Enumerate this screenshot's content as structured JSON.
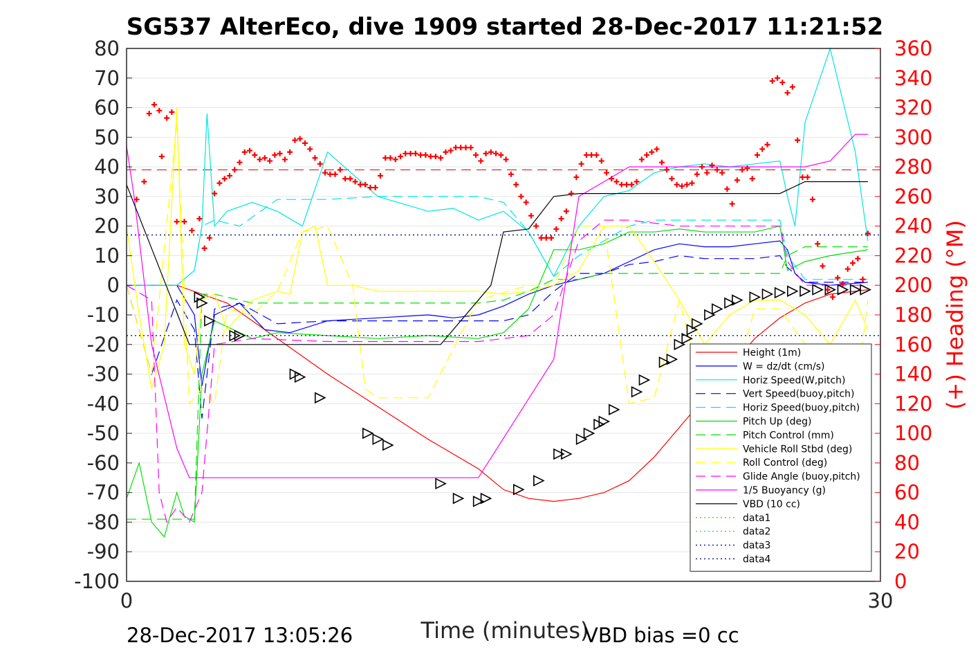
{
  "chart_data": {
    "type": "line",
    "title": "SG537 AlterEco, dive 1909 started 28-Dec-2017 11:21:52",
    "xlabel": "Time (minutes)",
    "ylabel": "",
    "ylabel_right": "(+) Heading (°M)",
    "xlim": [
      0,
      30
    ],
    "ylim": [
      -100,
      80
    ],
    "ylim_right": [
      0,
      360
    ],
    "x_ticks": [
      "0",
      "30"
    ],
    "y_ticks": [
      "80",
      "70",
      "60",
      "50",
      "40",
      "30",
      "20",
      "10",
      "0",
      "-10",
      "-20",
      "-30",
      "-40",
      "-50",
      "-60",
      "-70",
      "-80",
      "-90",
      "-100"
    ],
    "y_ticks_right": [
      "360",
      "340",
      "320",
      "300",
      "280",
      "260",
      "240",
      "220",
      "200",
      "180",
      "160",
      "140",
      "120",
      "100",
      "80",
      "60",
      "40",
      "20",
      "0"
    ],
    "grid": true,
    "legend_position": "lower-right",
    "footer_left": "28-Dec-2017 13:05:26",
    "footer_right": "VBD bias =0 cc",
    "series": [
      {
        "name": "Height (1m)",
        "color": "#ff0000",
        "style": "solid",
        "x": [
          0,
          2,
          4,
          6,
          8,
          10,
          12,
          14,
          15,
          16,
          17,
          18,
          19,
          20,
          21,
          22,
          23,
          24,
          25,
          26,
          27,
          28,
          29.5
        ],
        "y": [
          0,
          0,
          -6,
          -18,
          -30,
          -41,
          -52,
          -62,
          -69,
          -72,
          -73,
          -72,
          -70,
          -66,
          -58,
          -48,
          -38,
          -28,
          -18,
          -11,
          -6,
          -3,
          -1.5
        ]
      },
      {
        "name": "W = dz/dt (cm/s)",
        "color": "#0000ff",
        "style": "solid",
        "x": [
          0,
          2,
          2.7,
          3,
          3.5,
          4.5,
          5.5,
          6.5,
          8,
          10,
          12,
          13,
          14,
          15,
          16,
          17,
          18,
          19,
          20,
          21,
          22,
          23,
          24,
          25,
          26,
          26.3,
          26.6,
          27,
          28,
          29.5
        ],
        "y": [
          0,
          0,
          -10,
          -34,
          -10,
          -6,
          -15,
          -16,
          -12,
          -11,
          -10,
          -11,
          -10,
          -7,
          -3,
          0,
          2,
          4,
          8,
          12,
          14,
          13,
          13,
          14,
          15,
          12,
          4,
          1,
          0,
          1
        ]
      },
      {
        "name": "Horiz Speed(W,pitch)",
        "color": "#00e5e5",
        "style": "solid",
        "x": [
          0,
          2,
          2.7,
          3,
          3.2,
          3.5,
          4,
          5,
          6,
          7,
          8,
          10,
          12,
          13,
          14,
          15,
          16,
          17,
          18,
          19,
          20,
          21,
          22,
          23,
          24,
          25,
          26,
          26.3,
          26.6,
          27,
          28,
          29,
          29.5
        ],
        "y": [
          0,
          0,
          5,
          20,
          58,
          20,
          25,
          28,
          25,
          20,
          45,
          30,
          25,
          26,
          22,
          25,
          18,
          3,
          20,
          30,
          32,
          38,
          40,
          41,
          40,
          41,
          42,
          30,
          20,
          55,
          80,
          45,
          15
        ]
      },
      {
        "name": "Vert Speed(buoy,pitch)",
        "color": "#0000ff",
        "style": "dashed",
        "x": [
          0,
          1,
          2,
          2.7,
          3,
          3.5,
          4.5,
          6,
          8,
          10,
          12,
          14,
          15,
          16,
          17,
          18,
          19,
          20,
          21,
          22,
          23,
          24,
          25,
          26,
          26.3,
          27,
          29.5
        ],
        "y": [
          0,
          -30,
          -5,
          -15,
          -45,
          -8,
          -6,
          -13,
          -12,
          -12,
          -12,
          -12,
          -12,
          -10,
          -2,
          4,
          4,
          7,
          8,
          10,
          9,
          9,
          9,
          10,
          6,
          1,
          1
        ]
      },
      {
        "name": "Horiz Speed(buoy,pitch)",
        "color": "#00e5e5",
        "style": "dashed",
        "x": [
          0,
          2,
          2.7,
          3,
          3.5,
          4.5,
          6,
          8,
          10,
          12,
          14,
          15,
          16,
          17,
          18,
          19,
          20,
          21,
          22,
          23,
          24,
          25,
          26,
          26.3,
          27,
          29.5
        ],
        "y": [
          0,
          0,
          5,
          20,
          22,
          20,
          29,
          29,
          30,
          30,
          30,
          28,
          18,
          3,
          10,
          15,
          20,
          22,
          22,
          22,
          22,
          22,
          22,
          10,
          2,
          2
        ]
      },
      {
        "name": "Pitch Up (deg)",
        "color": "#00e000",
        "style": "solid",
        "x": [
          0,
          0.5,
          1,
          1.5,
          2,
          2.3,
          2.7,
          3,
          3.5,
          4,
          5,
          6,
          8,
          10,
          12,
          14,
          15,
          16,
          17,
          18,
          19,
          20,
          21,
          22,
          23,
          24,
          25,
          26,
          26.3,
          27,
          28,
          29.5
        ],
        "y": [
          -72,
          -60,
          -80,
          -85,
          -70,
          -78,
          -80,
          -30,
          -12,
          -14,
          -18,
          -16,
          -17,
          -18,
          -17,
          -18,
          -16,
          -8,
          12,
          12,
          14,
          18,
          18,
          19,
          18,
          18,
          18,
          20,
          5,
          8,
          10,
          12
        ]
      },
      {
        "name": "Pitch Control (mm)",
        "color": "#00e000",
        "style": "dashed",
        "x": [
          0,
          2,
          2.7,
          3,
          3.5,
          5,
          8,
          10,
          12,
          14,
          15,
          16,
          17,
          18,
          19,
          20,
          21,
          22,
          23,
          24,
          25,
          26,
          26.3,
          27,
          29.5
        ],
        "y": [
          -79,
          -79,
          -79,
          -3,
          -3,
          -6,
          -6,
          -6,
          -6,
          -6,
          -5,
          -2,
          2,
          2,
          4,
          4,
          4,
          4,
          4,
          4,
          4,
          4,
          10,
          13,
          13
        ]
      },
      {
        "name": "Vehicle Roll Stbd (deg)",
        "color": "#ffff00",
        "style": "solid",
        "x": [
          0,
          0.5,
          1,
          1.5,
          2,
          2.3,
          2.7,
          3,
          3.5,
          4,
          5,
          6,
          6.5,
          7,
          7.5,
          8,
          9,
          10,
          12,
          14,
          15,
          16,
          17,
          18,
          19,
          20,
          21,
          22,
          23,
          24,
          25,
          26,
          27,
          28,
          29,
          29.5
        ],
        "y": [
          20,
          -10,
          -35,
          -20,
          60,
          -20,
          -30,
          -5,
          -3,
          -15,
          -5,
          -2,
          -3,
          18,
          20,
          0,
          0,
          -2,
          -2,
          -2,
          -3,
          -2,
          0,
          5,
          20,
          20,
          8,
          -5,
          -20,
          -10,
          -5,
          -5,
          -10,
          -20,
          -5,
          -15
        ]
      },
      {
        "name": "Roll Control (deg)",
        "color": "#ffff00",
        "style": "dashed",
        "x": [
          0,
          1,
          2,
          2.5,
          3,
          3.5,
          4,
          5,
          6,
          7,
          8,
          9,
          9.5,
          10,
          12,
          14,
          16,
          17,
          18,
          19,
          20,
          21,
          22,
          23,
          24,
          25,
          26,
          27,
          28,
          29,
          29.5
        ],
        "y": [
          0,
          -30,
          55,
          -40,
          -35,
          -40,
          -8,
          -10,
          -2,
          18,
          20,
          0,
          -35,
          -38,
          -38,
          -5,
          0,
          0,
          20,
          20,
          -40,
          -38,
          -5,
          -38,
          -38,
          -8,
          -8,
          -20,
          -30,
          -40,
          -5
        ]
      },
      {
        "name": "Glide Angle (buoy,pitch)",
        "color": "#ff00ff",
        "style": "dashed",
        "x": [
          0,
          1,
          1.3,
          1.6,
          2,
          2.5,
          3,
          3.5,
          5,
          8,
          10,
          12,
          14,
          15,
          16,
          17,
          18,
          19,
          20,
          21,
          22,
          23,
          24,
          25,
          26,
          26.3,
          27,
          28,
          29.5
        ],
        "y": [
          0,
          -5,
          -70,
          -80,
          -75,
          -80,
          -70,
          -20,
          -18,
          -19,
          -19,
          -19,
          -19,
          -18,
          -17,
          -10,
          15,
          22,
          22,
          21,
          20,
          20,
          20,
          20,
          20,
          8,
          0,
          0,
          0
        ]
      },
      {
        "name": "1/5 Buoyancy (g)",
        "color": "#ff00ff",
        "style": "solid",
        "x": [
          0,
          0.3,
          1,
          2,
          2.5,
          3,
          6,
          10,
          14,
          15.5,
          17,
          18,
          20,
          23,
          25,
          26,
          27,
          28,
          29,
          29.5
        ],
        "y": [
          47,
          30,
          -20,
          -55,
          -65,
          -65,
          -65,
          -65,
          -65,
          -45,
          -25,
          30,
          40,
          40,
          40,
          40,
          40,
          42,
          51,
          51
        ]
      },
      {
        "name": "VBD (10 cc)",
        "color": "#000000",
        "style": "solid",
        "x": [
          0,
          2.5,
          3,
          6,
          10,
          12.5,
          14.5,
          15,
          16,
          17,
          18,
          19,
          26,
          27,
          28,
          29.5
        ],
        "y": [
          34,
          -20,
          -20,
          -20,
          -20,
          -20,
          0,
          18,
          19,
          30,
          31,
          31,
          31,
          35,
          35,
          35
        ]
      },
      {
        "name": "data1",
        "color": "#00e000",
        "style": "dotted",
        "x": [
          0,
          30
        ],
        "y": [
          17,
          17
        ]
      },
      {
        "name": "data2",
        "color": "#00e000",
        "style": "dotted",
        "x": [
          0,
          30
        ],
        "y": [
          -17,
          -17
        ]
      },
      {
        "name": "data3",
        "color": "#000080",
        "style": "dotted",
        "x": [
          0,
          30
        ],
        "y": [
          17,
          17
        ]
      },
      {
        "name": "data4",
        "color": "#000080",
        "style": "dotted",
        "x": [
          0,
          30
        ],
        "y": [
          -17,
          -17
        ]
      }
    ],
    "heading_line": {
      "color": "#cc0000",
      "style": "dashed",
      "y": 278
    },
    "heading_points": {
      "color": "#ff0000",
      "marker": "+",
      "x": [
        0.4,
        0.7,
        0.9,
        1.1,
        1.3,
        1.4,
        1.6,
        1.8,
        2.0,
        2.3,
        2.6,
        2.9,
        3.1,
        3.3,
        3.5,
        3.7,
        3.9,
        4.1,
        4.3,
        4.5,
        4.7,
        4.9,
        5.1,
        5.3,
        5.5,
        5.7,
        5.9,
        6.1,
        6.3,
        6.5,
        6.7,
        6.9,
        7.1,
        7.3,
        7.5,
        7.7,
        7.9,
        8.1,
        8.3,
        8.5,
        8.7,
        8.9,
        9.1,
        9.3,
        9.5,
        9.7,
        9.9,
        10.1,
        10.3,
        10.5,
        10.7,
        10.9,
        11.1,
        11.3,
        11.5,
        11.7,
        11.9,
        12.1,
        12.3,
        12.5,
        12.7,
        12.9,
        13.1,
        13.3,
        13.5,
        13.7,
        13.9,
        14.1,
        14.3,
        14.5,
        14.7,
        14.9,
        15.1,
        15.3,
        15.5,
        15.7,
        15.9,
        16.1,
        16.3,
        16.5,
        16.7,
        16.9,
        17.1,
        17.3,
        17.5,
        17.7,
        17.9,
        18.1,
        18.3,
        18.5,
        18.7,
        18.9,
        19.1,
        19.3,
        19.5,
        19.7,
        19.9,
        20.1,
        20.3,
        20.5,
        20.7,
        20.9,
        21.1,
        21.3,
        21.5,
        21.7,
        21.9,
        22.1,
        22.3,
        22.5,
        22.7,
        22.9,
        23.1,
        23.3,
        23.5,
        23.7,
        23.9,
        24.1,
        24.3,
        24.5,
        24.7,
        24.9,
        25.1,
        25.3,
        25.5,
        25.7,
        25.9,
        26.1,
        26.3,
        26.5,
        26.7,
        26.9,
        27.1,
        27.3,
        27.5,
        27.7,
        27.9,
        28.1,
        28.3,
        28.5,
        28.7,
        28.9,
        29.1,
        29.3,
        29.5
      ],
      "y": [
        258,
        270,
        316,
        322,
        318,
        287,
        313,
        317,
        243,
        243,
        237,
        245,
        225,
        232,
        262,
        269,
        272,
        274,
        278,
        283,
        290,
        291,
        288,
        285,
        286,
        284,
        288,
        289,
        285,
        290,
        298,
        299,
        296,
        292,
        286,
        282,
        276,
        275,
        275,
        278,
        272,
        272,
        270,
        268,
        268,
        266,
        266,
        274,
        286,
        286,
        285,
        287,
        289,
        289,
        289,
        288,
        288,
        287,
        287,
        286,
        290,
        291,
        293,
        293,
        293,
        293,
        288,
        284,
        289,
        290,
        289,
        288,
        285,
        275,
        268,
        260,
        256,
        247,
        240,
        232,
        232,
        232,
        238,
        245,
        250,
        262,
        273,
        282,
        288,
        288,
        288,
        284,
        276,
        272,
        270,
        268,
        268,
        268,
        270,
        285,
        288,
        290,
        292,
        283,
        278,
        272,
        268,
        267,
        268,
        269,
        275,
        280,
        276,
        281,
        278,
        276,
        265,
        255,
        271,
        278,
        279,
        272,
        288,
        292,
        295,
        338,
        340,
        337,
        330,
        334,
        298,
        273,
        273,
        258,
        228,
        213,
        197,
        192,
        205,
        201,
        211,
        215,
        218,
        204,
        235
      ]
    },
    "triangle_markers": {
      "color": "#000000",
      "x": [
        2.9,
        3.0,
        3.3,
        4.3,
        4.5,
        6.7,
        6.9,
        7.7,
        9.6,
        10.0,
        10.4,
        12.5,
        13.2,
        14.0,
        14.3,
        15.6,
        16.4,
        17.2,
        17.5,
        18.1,
        18.4,
        18.8,
        19.0,
        19.4,
        20.3,
        20.6,
        21.4,
        21.7,
        22.0,
        22.3,
        22.5,
        22.7,
        23.2,
        23.5,
        24.0,
        24.3,
        25.0,
        25.5,
        26.0,
        26.5,
        27.0,
        27.5,
        28.0,
        28.5,
        29.0,
        29.4
      ],
      "y": [
        -4,
        -6,
        -12,
        -17,
        -17,
        -30,
        -31,
        -38,
        -50,
        -52,
        -54,
        -67,
        -72,
        -73,
        -72,
        -69,
        -66,
        -57,
        -57,
        -52,
        -50,
        -47,
        -46,
        -42,
        -36,
        -32,
        -26,
        -25,
        -20,
        -18,
        -15,
        -13,
        -10,
        -8,
        -6,
        -5,
        -4,
        -3,
        -2.5,
        -2,
        -2,
        -1.5,
        -1.5,
        -1.5,
        -1.5,
        -1.5
      ]
    }
  }
}
